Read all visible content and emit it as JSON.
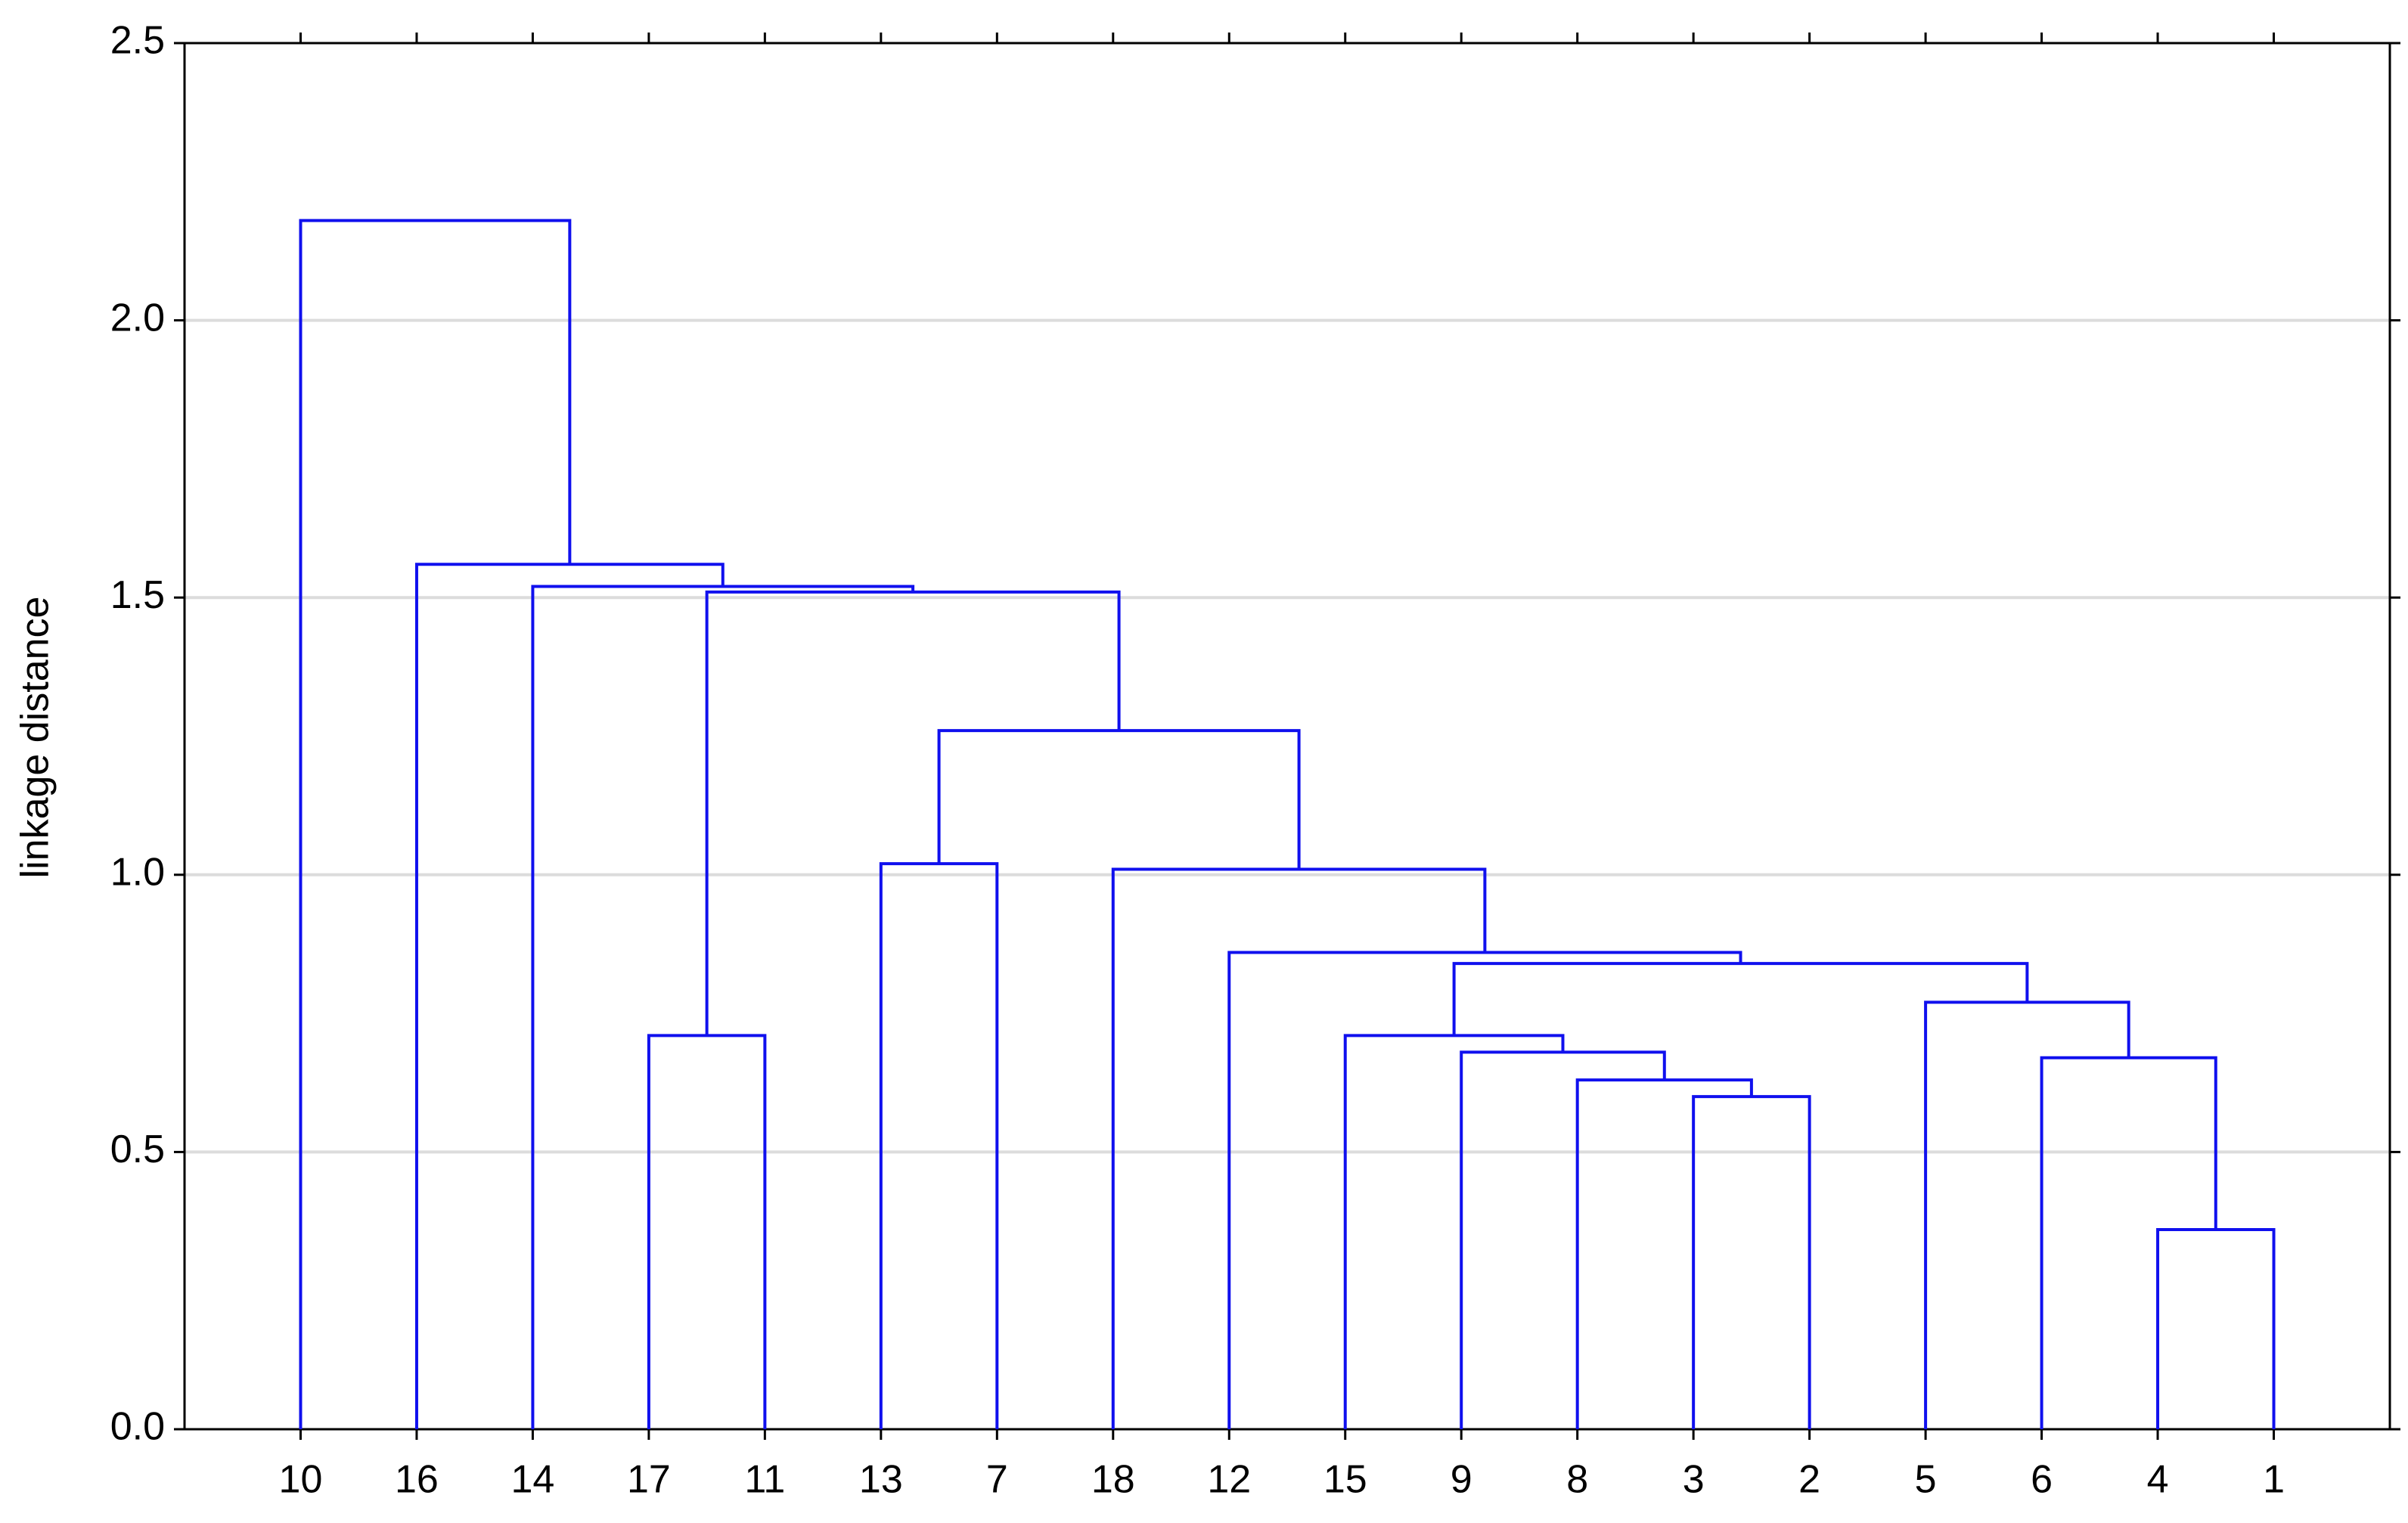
{
  "chart_data": {
    "type": "dendrogram",
    "y_label": "linkage distance",
    "categories": [
      "10",
      "16",
      "14",
      "17",
      "11",
      "13",
      "7",
      "18",
      "12",
      "15",
      "9",
      "8",
      "3",
      "2",
      "5",
      "6",
      "4",
      "1"
    ],
    "merges": [
      {
        "children": [
          16,
          17
        ],
        "height": 0.36
      },
      {
        "children": [
          12,
          13
        ],
        "height": 0.6
      },
      {
        "children": [
          11,
          19
        ],
        "height": 0.63
      },
      {
        "children": [
          10,
          20
        ],
        "height": 0.68
      },
      {
        "children": [
          9,
          21
        ],
        "height": 0.71
      },
      {
        "children": [
          15,
          18
        ],
        "height": 0.67
      },
      {
        "children": [
          14,
          23
        ],
        "height": 0.77
      },
      {
        "children": [
          22,
          24
        ],
        "height": 0.84
      },
      {
        "children": [
          8,
          25
        ],
        "height": 0.86
      },
      {
        "children": [
          7,
          26
        ],
        "height": 1.01
      },
      {
        "children": [
          5,
          6
        ],
        "height": 1.02
      },
      {
        "children": [
          28,
          27
        ],
        "height": 1.26
      },
      {
        "children": [
          3,
          4
        ],
        "height": 0.71
      },
      {
        "children": [
          30,
          29
        ],
        "height": 1.51
      },
      {
        "children": [
          2,
          31
        ],
        "height": 1.52
      },
      {
        "children": [
          1,
          32
        ],
        "height": 1.56
      },
      {
        "children": [
          0,
          33
        ],
        "height": 2.18
      }
    ],
    "color": "#1010ee",
    "ylim": [
      0,
      2.5
    ],
    "yticks": [
      {
        "value": 0,
        "label": "0.0"
      },
      0.5,
      {
        "value": 1,
        "label": "1.0"
      },
      1.5,
      {
        "value": 2,
        "label": "2.0"
      },
      2.5
    ],
    "grid": true
  }
}
